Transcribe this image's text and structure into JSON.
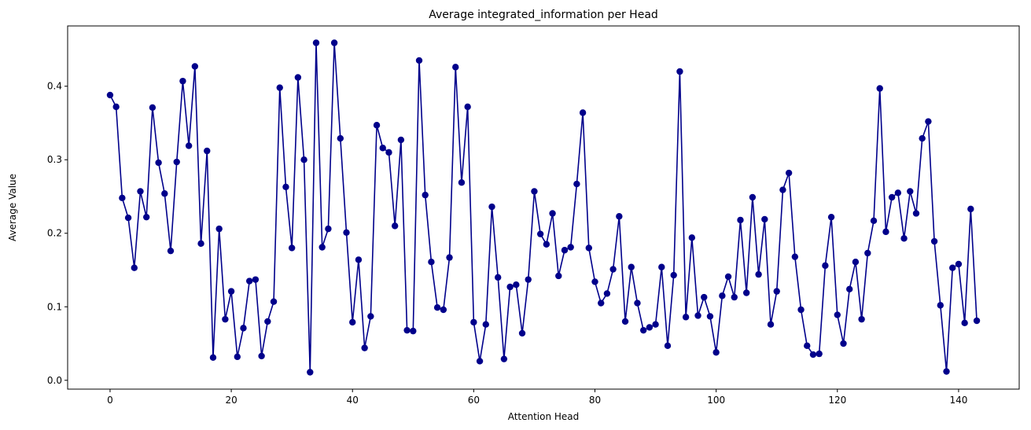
{
  "chart_data": {
    "type": "line",
    "title": "Average integrated_information per Head",
    "xlabel": "Attention Head",
    "ylabel": "Average Value",
    "xlim": [
      -7,
      150
    ],
    "ylim": [
      -0.012,
      0.482
    ],
    "xticks": [
      0,
      20,
      40,
      60,
      80,
      100,
      120,
      140
    ],
    "yticks": [
      0.0,
      0.1,
      0.2,
      0.3,
      0.4
    ],
    "xtick_labels": [
      "0",
      "20",
      "40",
      "60",
      "80",
      "100",
      "120",
      "140"
    ],
    "ytick_labels": [
      "0.0",
      "0.1",
      "0.2",
      "0.3",
      "0.4"
    ],
    "grid": false,
    "line_color": "#00008b",
    "marker": "circle",
    "x_start": 0,
    "values": [
      0.388,
      0.372,
      0.248,
      0.221,
      0.153,
      0.257,
      0.222,
      0.371,
      0.296,
      0.254,
      0.176,
      0.297,
      0.407,
      0.319,
      0.427,
      0.186,
      0.312,
      0.031,
      0.206,
      0.083,
      0.121,
      0.032,
      0.071,
      0.135,
      0.137,
      0.033,
      0.08,
      0.107,
      0.398,
      0.263,
      0.18,
      0.412,
      0.3,
      0.011,
      0.459,
      0.181,
      0.206,
      0.459,
      0.329,
      0.201,
      0.079,
      0.164,
      0.044,
      0.087,
      0.347,
      0.316,
      0.31,
      0.21,
      0.327,
      0.068,
      0.067,
      0.435,
      0.252,
      0.161,
      0.099,
      0.096,
      0.167,
      0.426,
      0.269,
      0.372,
      0.079,
      0.026,
      0.076,
      0.236,
      0.14,
      0.029,
      0.127,
      0.13,
      0.064,
      0.137,
      0.257,
      0.199,
      0.185,
      0.227,
      0.142,
      0.177,
      0.181,
      0.267,
      0.364,
      0.18,
      0.134,
      0.105,
      0.118,
      0.151,
      0.223,
      0.08,
      0.154,
      0.105,
      0.068,
      0.072,
      0.076,
      0.154,
      0.047,
      0.143,
      0.42,
      0.086,
      0.194,
      0.088,
      0.113,
      0.087,
      0.038,
      0.115,
      0.141,
      0.113,
      0.218,
      0.119,
      0.249,
      0.144,
      0.219,
      0.076,
      0.121,
      0.259,
      0.282,
      0.168,
      0.096,
      0.047,
      0.035,
      0.036,
      0.156,
      0.222,
      0.089,
      0.05,
      0.124,
      0.161,
      0.083,
      0.173,
      0.217,
      0.397,
      0.202,
      0.249,
      0.255,
      0.193,
      0.257,
      0.227,
      0.329,
      0.352,
      0.189,
      0.102,
      0.012,
      0.153,
      0.158,
      0.078,
      0.233,
      0.081
    ]
  }
}
